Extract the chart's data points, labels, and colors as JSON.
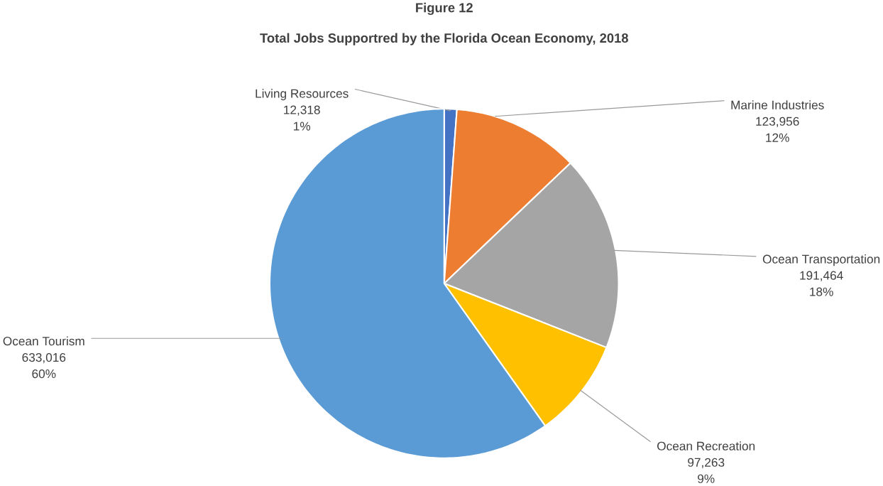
{
  "chart_data": {
    "type": "pie",
    "title": "Figure 12",
    "subtitle": "Total Jobs Supportred by the Florida Ocean Economy, 2018",
    "categories": [
      "Living Resources",
      "Marine Industries",
      "Ocean Transportation",
      "Ocean Recreation",
      "Ocean Tourism"
    ],
    "values": [
      12318,
      123956,
      191464,
      97263,
      633016
    ],
    "value_labels": [
      "12,318",
      "123,956",
      "191,464",
      "97,263",
      "633,016"
    ],
    "annotations": [
      "1%",
      "12%",
      "18%",
      "9%",
      "60%"
    ],
    "colors": [
      "#4472c4",
      "#ed7d31",
      "#a5a5a5",
      "#ffc000",
      "#5b9bd5"
    ]
  }
}
